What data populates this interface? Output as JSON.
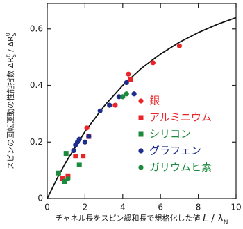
{
  "chart_data": {
    "type": "scatter",
    "y_label_parts": [
      "スピンの回転運動の性能指数 ΔR",
      "S",
      "π",
      " / ΔR",
      "S",
      "0"
    ],
    "x_label_parts": [
      "チャネル長をスピン緩和長で規格化した値 ",
      "L",
      " / λ",
      "N"
    ],
    "xlim": [
      0,
      10
    ],
    "xticks": [
      0,
      2,
      4,
      6,
      8,
      10
    ],
    "ylim": [
      0,
      0.69
    ],
    "yticks": [
      0,
      0.2,
      0.4,
      0.6
    ],
    "legend": "right",
    "series": [
      {
        "color": "#111111",
        "marker": "line",
        "x": [
          0,
          0.5,
          1,
          2,
          3,
          4,
          5,
          6,
          7,
          8,
          9,
          10
        ],
        "values": [
          0,
          0.068,
          0.13,
          0.237,
          0.326,
          0.4,
          0.461,
          0.511,
          0.553,
          0.587,
          0.616,
          0.64
        ]
      },
      {
        "name": "銀",
        "color": "#e8262a",
        "marker": "circle",
        "x": [
          2.1,
          3.6,
          4.3,
          5.6,
          7.0
        ],
        "values": [
          0.25,
          0.33,
          0.44,
          0.48,
          0.54
        ]
      },
      {
        "name": "アルミニウム",
        "color": "#e8262a",
        "marker": "square",
        "x": [
          0.8,
          1.1,
          1.5,
          1.9,
          2.2,
          4.4
        ],
        "values": [
          0.07,
          0.08,
          0.15,
          0.15,
          0.22,
          0.42
        ]
      },
      {
        "name": "シリコン",
        "color": "#1b8a3c",
        "marker": "square",
        "x": [
          0.6,
          0.9,
          1.0,
          1.7
        ],
        "values": [
          0.09,
          0.06,
          0.16,
          0.12
        ]
      },
      {
        "name": "グラフェン",
        "color": "#1f2d8c",
        "marker": "circle",
        "x": [
          1.4,
          1.5,
          1.6,
          1.7,
          2.0,
          2.2,
          2.8,
          3.3,
          3.8,
          4.2,
          4.6
        ],
        "values": [
          0.17,
          0.19,
          0.2,
          0.21,
          0.2,
          0.22,
          0.31,
          0.33,
          0.36,
          0.41,
          0.37
        ]
      },
      {
        "name": "ガリウムヒ素",
        "color": "#1b8a3c",
        "marker": "circle",
        "x": [
          1.1,
          4.0,
          4.2
        ],
        "values": [
          0.07,
          0.36,
          0.37
        ]
      }
    ]
  }
}
